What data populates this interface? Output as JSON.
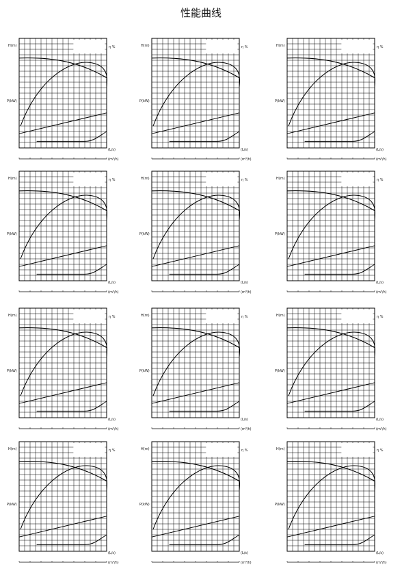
{
  "header": {
    "title": "性能曲线"
  },
  "panels": [
    {
      "head_label": "H(m)",
      "eff_label": "η %",
      "power_label": "P(kW)",
      "flow_unit": "(m³/h)",
      "flow_unit2": "(L/s)"
    },
    {
      "head_label": "H(m)",
      "eff_label": "η %",
      "power_label": "P(kW)",
      "flow_unit": "(m³/h)",
      "flow_unit2": "(L/s)"
    },
    {
      "head_label": "H(m)",
      "eff_label": "η %",
      "power_label": "P(kW)",
      "flow_unit": "(m³/h)",
      "flow_unit2": "(L/s)"
    },
    {
      "head_label": "H(m)",
      "eff_label": "η %",
      "power_label": "P(kW)",
      "flow_unit": "(m³/h)",
      "flow_unit2": "(L/s)"
    },
    {
      "head_label": "H(m)",
      "eff_label": "η %",
      "power_label": "P(kW)",
      "flow_unit": "(m³/h)",
      "flow_unit2": "(L/s)"
    },
    {
      "head_label": "H(m)",
      "eff_label": "η %",
      "power_label": "P(kW)",
      "flow_unit": "(m³/h)",
      "flow_unit2": "(L/s)"
    },
    {
      "head_label": "H(m)",
      "eff_label": "η %",
      "power_label": "P(kW)",
      "flow_unit": "(m³/h)",
      "flow_unit2": "(L/s)"
    },
    {
      "head_label": "H(m)",
      "eff_label": "η %",
      "power_label": "P(kW)",
      "flow_unit": "(m³/h)",
      "flow_unit2": "(L/s)"
    },
    {
      "head_label": "H(m)",
      "eff_label": "η %",
      "power_label": "P(kW)",
      "flow_unit": "(m³/h)",
      "flow_unit2": "(L/s)"
    },
    {
      "head_label": "H(m)",
      "eff_label": "η %",
      "power_label": "P(kW)",
      "flow_unit": "(m³/h)",
      "flow_unit2": "(L/s)"
    },
    {
      "head_label": "H(m)",
      "eff_label": "η %",
      "power_label": "P(kW)",
      "flow_unit": "(m³/h)",
      "flow_unit2": "(L/s)"
    },
    {
      "head_label": "H(m)",
      "eff_label": "η %",
      "power_label": "P(kW)",
      "flow_unit": "(m³/h)",
      "flow_unit2": "(L/s)"
    }
  ]
}
